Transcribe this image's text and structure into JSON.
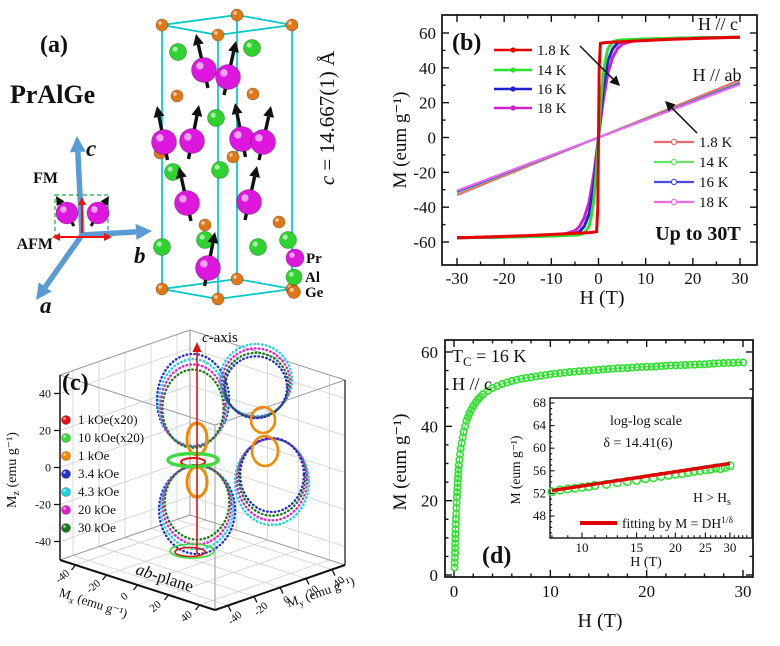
{
  "panel_a": {
    "label": "(a)",
    "compound": "PrAlGe",
    "axis_a": "a",
    "axis_b": "b",
    "axis_c": "c",
    "fm": "FM",
    "afm": "AFM",
    "lattice": {
      "var": "c",
      "rest": " = 14.667(1) Å"
    },
    "legend": [
      {
        "name": "Pr",
        "color": "#dd17dd"
      },
      {
        "name": "Al",
        "color": "#2fd32f"
      },
      {
        "name": "Ge",
        "color": "#e07818"
      }
    ],
    "colors": {
      "cell": "#00c8c8",
      "axis_arrow": "#5b9bd5",
      "moment_arrow": "#111111",
      "fm_afm_arrow": "#ee1111",
      "dash_box": "#22aa44"
    }
  },
  "chart_data": [
    {
      "id": "b",
      "type": "line",
      "panel_label": "(b)",
      "xlabel": "H (T)",
      "ylabel": "M (eum g⁻¹)",
      "xlim": [
        -33,
        33
      ],
      "ylim": [
        -70,
        70
      ],
      "xticks": [
        -30,
        -20,
        -10,
        0,
        10,
        20,
        30
      ],
      "yticks": [
        -60,
        -40,
        -20,
        0,
        20,
        40,
        60
      ],
      "annotations": {
        "hc": "H // c",
        "hab": "H // ab",
        "upto": "Up to 30T"
      },
      "series": [
        {
          "name": "1.8 K",
          "color": "#e80000",
          "group": "H // c",
          "points": [
            [
              -30,
              -57.5
            ],
            [
              -25,
              -57.2
            ],
            [
              -20,
              -56.8
            ],
            [
              -15,
              -56.3
            ],
            [
              -10,
              -55.7
            ],
            [
              -5,
              -55.0
            ],
            [
              -2,
              -54.6
            ],
            [
              -1,
              -54.3
            ],
            [
              -0.4,
              -54.0
            ],
            [
              -0.15,
              -40
            ],
            [
              0,
              0
            ],
            [
              0.15,
              40
            ],
            [
              0.4,
              54.0
            ],
            [
              1,
              54.3
            ],
            [
              2,
              54.6
            ],
            [
              5,
              55.0
            ],
            [
              10,
              55.7
            ],
            [
              15,
              56.3
            ],
            [
              20,
              56.8
            ],
            [
              25,
              57.2
            ],
            [
              30,
              57.5
            ]
          ]
        },
        {
          "name": "14 K",
          "color": "#2ee02e",
          "group": "H // c",
          "points": [
            [
              -30,
              -57.6
            ],
            [
              -20,
              -57.2
            ],
            [
              -10,
              -56.6
            ],
            [
              -5,
              -56.0
            ],
            [
              -4,
              -55.8
            ],
            [
              -3,
              -55.0
            ],
            [
              -2,
              -51.0
            ],
            [
              -1.5,
              -45.0
            ],
            [
              -1,
              -36.0
            ],
            [
              -0.5,
              -21.0
            ],
            [
              0,
              0
            ],
            [
              0.5,
              21
            ],
            [
              1,
              36
            ],
            [
              1.5,
              45
            ],
            [
              2,
              51
            ],
            [
              3,
              55
            ],
            [
              4,
              55.8
            ],
            [
              5,
              56
            ],
            [
              10,
              56.6
            ],
            [
              20,
              57.2
            ],
            [
              30,
              57.6
            ]
          ]
        },
        {
          "name": "16 K",
          "color": "#2020d0",
          "group": "H // c",
          "points": [
            [
              -30,
              -57.6
            ],
            [
              -20,
              -57.2
            ],
            [
              -10,
              -56.5
            ],
            [
              -7,
              -56.0
            ],
            [
              -5,
              -55.3
            ],
            [
              -4,
              -54.0
            ],
            [
              -3,
              -51.0
            ],
            [
              -2,
              -44.0
            ],
            [
              -1,
              -28.0
            ],
            [
              -0.5,
              -15.0
            ],
            [
              0,
              0
            ],
            [
              0.5,
              15
            ],
            [
              1,
              28
            ],
            [
              2,
              44
            ],
            [
              3,
              51
            ],
            [
              4,
              54
            ],
            [
              5,
              55.3
            ],
            [
              7,
              56
            ],
            [
              10,
              56.5
            ],
            [
              20,
              57.2
            ],
            [
              30,
              57.6
            ]
          ]
        },
        {
          "name": "18 K",
          "color": "#d020d0",
          "group": "H // c",
          "points": [
            [
              -30,
              -57.6
            ],
            [
              -20,
              -57.1
            ],
            [
              -10,
              -56.2
            ],
            [
              -7,
              -55.3
            ],
            [
              -5,
              -53.5
            ],
            [
              -4,
              -51.0
            ],
            [
              -3,
              -46.0
            ],
            [
              -2,
              -37.0
            ],
            [
              -1,
              -21.0
            ],
            [
              -0.5,
              -11.0
            ],
            [
              0,
              0
            ],
            [
              0.5,
              11
            ],
            [
              1,
              21
            ],
            [
              2,
              37
            ],
            [
              3,
              46
            ],
            [
              4,
              51
            ],
            [
              5,
              53.5
            ],
            [
              7,
              55.3
            ],
            [
              10,
              56.2
            ],
            [
              20,
              57.1
            ],
            [
              30,
              57.6
            ]
          ]
        },
        {
          "name": "1.8 K",
          "color": "#e86a6a",
          "group": "H // ab",
          "points": [
            [
              -30,
              -33.0
            ],
            [
              0,
              0
            ],
            [
              30,
              33.0
            ]
          ]
        },
        {
          "name": "14 K",
          "color": "#63e663",
          "group": "H // ab",
          "points": [
            [
              -30,
              -31.6
            ],
            [
              0,
              0
            ],
            [
              30,
              31.6
            ]
          ]
        },
        {
          "name": "16 K",
          "color": "#4a4ae0",
          "group": "H // ab",
          "points": [
            [
              -30,
              -31.1
            ],
            [
              0,
              0
            ],
            [
              30,
              31.1
            ]
          ]
        },
        {
          "name": "18 K",
          "color": "#ea6aea",
          "group": "H // ab",
          "points": [
            [
              -30,
              -30.5
            ],
            [
              0,
              0
            ],
            [
              30,
              30.5
            ]
          ]
        }
      ]
    },
    {
      "id": "c",
      "type": "scatter3d",
      "panel_label": "(c)",
      "xlabel": {
        "main": "M",
        "sub": "x",
        "rest": " (emu g⁻¹)"
      },
      "ylabel": {
        "main": "M",
        "sub": "y",
        "rest": " (emu g⁻¹)"
      },
      "zlabel": {
        "main": "M",
        "sub": "z",
        "rest": " (emu g⁻¹)"
      },
      "xticks": [
        -40,
        -20,
        0,
        20,
        40
      ],
      "yticks": [
        -40,
        -20,
        0,
        20,
        40
      ],
      "zticks": [
        40,
        20,
        0,
        -20,
        -40
      ],
      "annotations": {
        "caxis": {
          "italic": "c",
          "rest": "-axis"
        },
        "abplane": {
          "italic": "ab",
          "rest": "-plane"
        }
      },
      "description": "Angular dependence of magnetization: dumbbell lobes along c-axis, small rings in ab-plane for the x20 low-field data.",
      "series": [
        {
          "name": "1 kOe(x20)",
          "color": "#e41111",
          "amplitude_emu_g": 9,
          "shape": "ab-plane ring"
        },
        {
          "name": "10 kOe(x20)",
          "color": "#3ddb3d",
          "amplitude_emu_g": 13,
          "shape": "ab-plane ring"
        },
        {
          "name": "1 kOe",
          "color": "#f08a00",
          "amplitude_emu_g": 20,
          "shape": "c-axis lobes"
        },
        {
          "name": "3.4 kOe",
          "color": "#2431c8",
          "amplitude_emu_g": 52,
          "shape": "c-axis lobes"
        },
        {
          "name": "4.3 kOe",
          "color": "#1ad4e0",
          "amplitude_emu_g": 54,
          "shape": "c-axis lobes"
        },
        {
          "name": "20 kOe",
          "color": "#e022c8",
          "amplitude_emu_g": 56,
          "shape": "c-axis lobes"
        },
        {
          "name": "30 kOe",
          "color": "#1d7a1d",
          "amplitude_emu_g": 57,
          "shape": "c-axis lobes"
        }
      ]
    },
    {
      "id": "d",
      "type": "scatter",
      "panel_label": "(d)",
      "xlabel": "H (T)",
      "ylabel": "M (eum g⁻¹)",
      "xlim": [
        -1,
        31
      ],
      "ylim": [
        -0.5,
        63
      ],
      "xticks": [
        0,
        10,
        20,
        30
      ],
      "yticks": [
        0,
        20,
        40,
        60
      ],
      "annotations": {
        "tc": {
          "main": "T",
          "sub": "C",
          "rest": " = 16 K"
        },
        "hc": "H // c"
      },
      "series": [
        {
          "name": "M vs H at 16 K",
          "color": "#35e035",
          "marker": "o",
          "points": [
            [
              0.05,
              2
            ],
            [
              0.1,
              6
            ],
            [
              0.15,
              11
            ],
            [
              0.2,
              15
            ],
            [
              0.3,
              21
            ],
            [
              0.4,
              26
            ],
            [
              0.5,
              29.5
            ],
            [
              0.7,
              34
            ],
            [
              1,
              38.5
            ],
            [
              1.3,
              41.5
            ],
            [
              1.6,
              43.5
            ],
            [
              2,
              45.5
            ],
            [
              2.5,
              47.3
            ],
            [
              3,
              48.6
            ],
            [
              3.5,
              49.5
            ],
            [
              4,
              50.3
            ],
            [
              5,
              51.4
            ],
            [
              6,
              52.2
            ],
            [
              7,
              52.8
            ],
            [
              8,
              53.2
            ],
            [
              9,
              53.6
            ],
            [
              10,
              54
            ],
            [
              11,
              54.3
            ],
            [
              12,
              54.6
            ],
            [
              13,
              54.8
            ],
            [
              14,
              55
            ],
            [
              15,
              55.2
            ],
            [
              16,
              55.4
            ],
            [
              17,
              55.6
            ],
            [
              18,
              55.7
            ],
            [
              19,
              55.9
            ],
            [
              20,
              56
            ],
            [
              21,
              56.1
            ],
            [
              22,
              56.3
            ],
            [
              23,
              56.4
            ],
            [
              24,
              56.5
            ],
            [
              25,
              56.6
            ],
            [
              26,
              56.7
            ],
            [
              27,
              56.9
            ],
            [
              28,
              57
            ],
            [
              29,
              57.1
            ],
            [
              30,
              57.2
            ]
          ]
        }
      ]
    },
    {
      "id": "d-inset",
      "type": "scatter",
      "xscale": "log",
      "xlabel": "H (T)",
      "ylabel": "M (eum g⁻¹)",
      "xlim": [
        7.9,
        35
      ],
      "ylim": [
        44,
        69
      ],
      "xticks": [
        10,
        15,
        20,
        25,
        30
      ],
      "yticks": [
        48,
        52,
        56,
        60,
        64,
        68
      ],
      "annotations": {
        "scale": "log-log scale",
        "delta": "δ = 14.41(6)",
        "hs": {
          "main": "H > H",
          "sub": "s"
        },
        "fit": {
          "main": "fitting by M = DH",
          "sup": "1/δ"
        }
      },
      "series": [
        {
          "name": "data",
          "color": "#35e035",
          "marker": "o",
          "points": [
            [
              8,
              52.3
            ],
            [
              8.5,
              52.6
            ],
            [
              9,
              52.8
            ],
            [
              9.5,
              52.9
            ],
            [
              10,
              53.1
            ],
            [
              10.5,
              53.2
            ],
            [
              11,
              53.4
            ],
            [
              12,
              53.6
            ],
            [
              13,
              53.9
            ],
            [
              14,
              54.1
            ],
            [
              15,
              54.3
            ],
            [
              16,
              54.6
            ],
            [
              17,
              54.8
            ],
            [
              18,
              55.0
            ],
            [
              19,
              55.2
            ],
            [
              20,
              55.4
            ],
            [
              21,
              55.5
            ],
            [
              22,
              55.7
            ],
            [
              23,
              55.9
            ],
            [
              24,
              56.0
            ],
            [
              25,
              56.2
            ],
            [
              26,
              56.3
            ],
            [
              27,
              56.5
            ],
            [
              28,
              56.4
            ],
            [
              29,
              56.6
            ],
            [
              30,
              56.9
            ]
          ]
        },
        {
          "name": "fit M = DH^(1/δ)",
          "color": "#e00000",
          "marker": "line",
          "points": [
            [
              8,
              52.5
            ],
            [
              30,
              57.3
            ]
          ]
        }
      ]
    }
  ]
}
